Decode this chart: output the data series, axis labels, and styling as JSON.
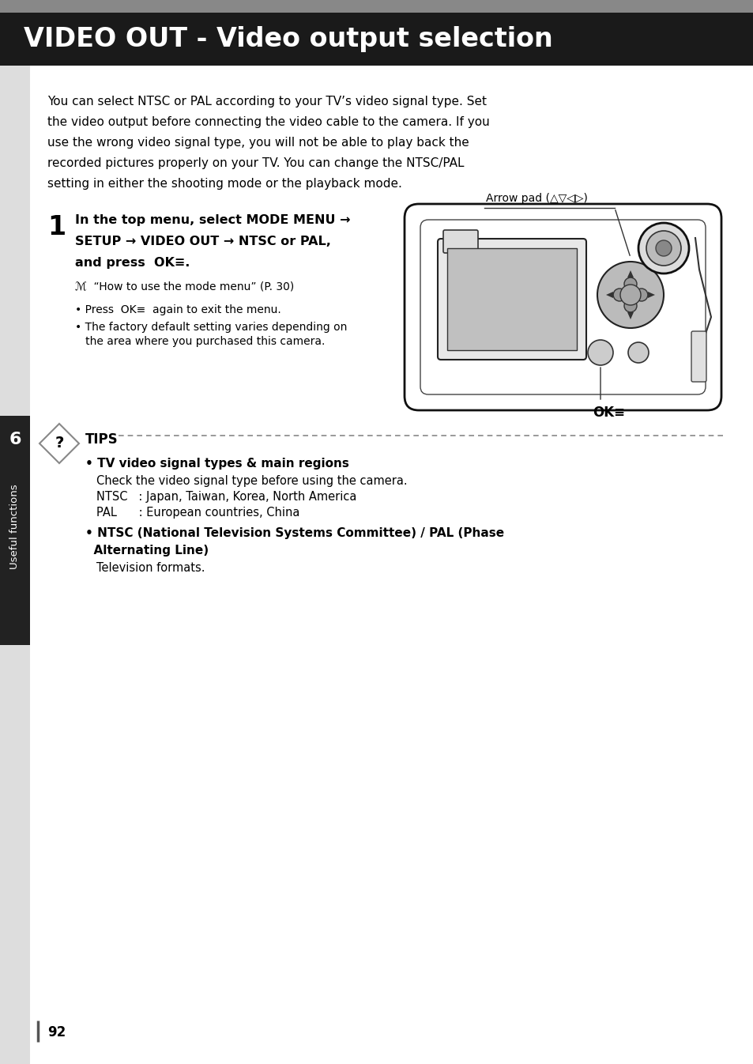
{
  "title": "VIDEO OUT - Video output selection",
  "title_bg": "#1a1a1a",
  "title_color": "#ffffff",
  "body_bg": "#ffffff",
  "text_color": "#000000",
  "page_number": "92",
  "sidebar_text": "Useful functions",
  "sidebar_number": "6",
  "sidebar_bg": "#222222",
  "sidebar_text_color": "#ffffff",
  "intro_text": "You can select NTSC or PAL according to your TV’s video signal type. Set\nthe video output before connecting the video cable to the camera. If you\nuse the wrong video signal type, you will not be able to play back the\nrecorded pictures properly on your TV. You can change the NTSC/PAL\nsetting in either the shooting mode or the playback mode.",
  "step1_number": "1",
  "step1_bold_line1": "In the top menu, select MODE MENU →",
  "step1_bold_line2": "SETUP → VIDEO OUT → NTSC or PAL,",
  "step1_bold_line3": "and press  OK≡.",
  "step1_ref": "ℳ  “How to use the mode menu” (P. 30)",
  "step1_bullet1": "• Press  OK≡  again to exit the menu.",
  "step1_bullet2a": "• The factory default setting varies depending on",
  "step1_bullet2b": "   the area where you purchased this camera.",
  "camera_label": "Arrow pad (△▽◁▷)",
  "ok_label": "OK≡",
  "tips_title": "TIPS",
  "tips_b1_bold": "• TV video signal types & main regions",
  "tips_b1_line1": "Check the video signal type before using the camera.",
  "tips_b1_line2": "NTSC   : Japan, Taiwan, Korea, North America",
  "tips_b1_line3": "PAL      : European countries, China",
  "tips_b2_bold1": "• NTSC (National Television Systems Committee) / PAL (Phase",
  "tips_b2_bold2": "  Alternating Line)",
  "tips_b2_text": "Television formats.",
  "top_gray": "#888888",
  "dashed_color": "#888888",
  "sidebar_light": "#dddddd"
}
